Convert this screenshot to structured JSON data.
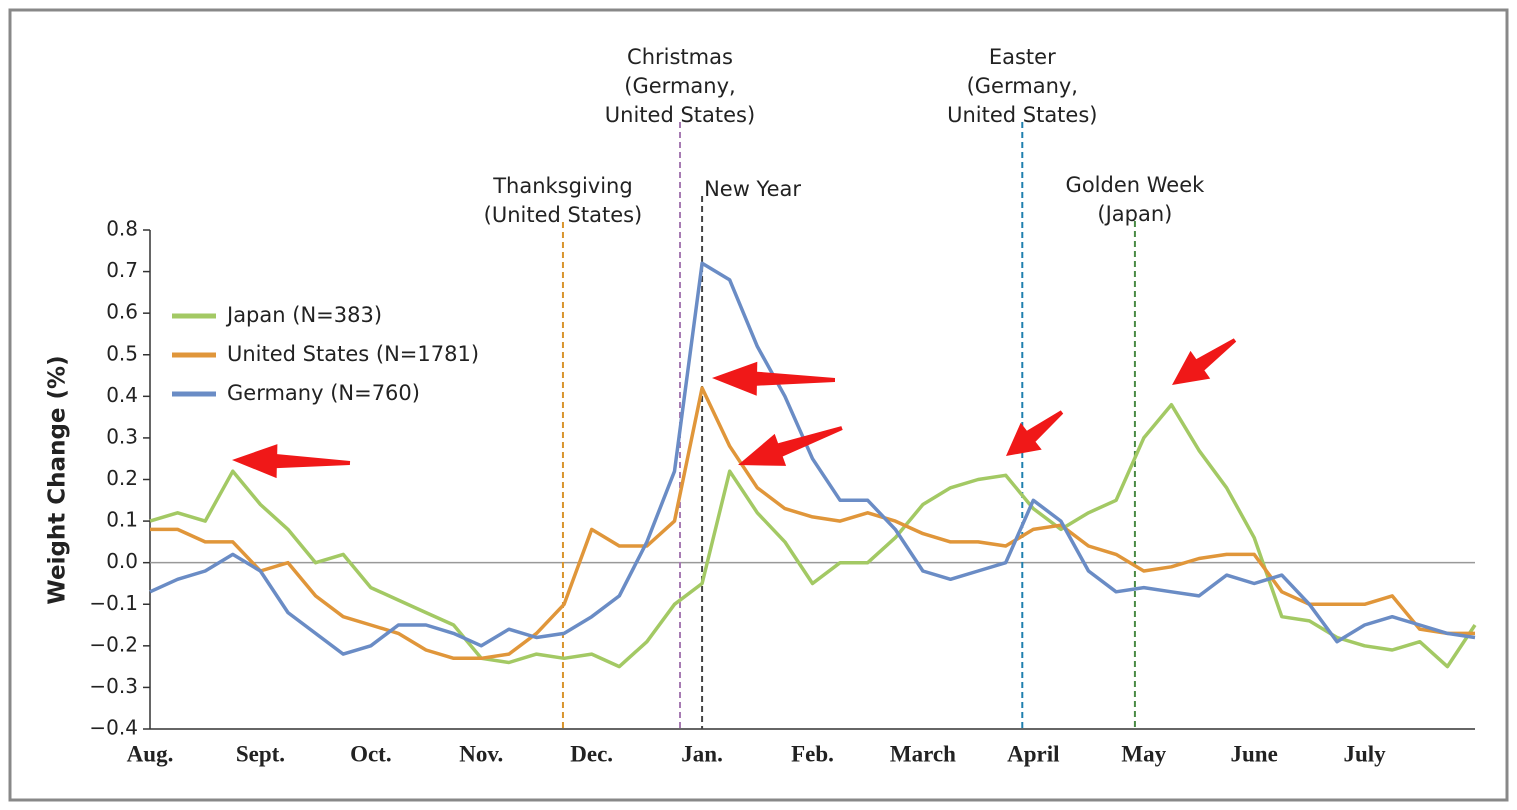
{
  "chart_data": {
    "type": "line",
    "y_label": "Weight Change (%)",
    "x": [
      0,
      0.25,
      0.5,
      0.75,
      1,
      1.25,
      1.5,
      1.75,
      2,
      2.25,
      2.5,
      2.75,
      3,
      3.25,
      3.5,
      3.75,
      4,
      4.25,
      4.5,
      4.75,
      5,
      5.25,
      5.5,
      5.75,
      6,
      6.25,
      6.5,
      6.75,
      7,
      7.25,
      7.5,
      7.75,
      8,
      8.25,
      8.5,
      8.75,
      9,
      9.25,
      9.5,
      9.75,
      10,
      10.25,
      10.5,
      10.75,
      11,
      11.25,
      11.5,
      11.75,
      12
    ],
    "series": [
      {
        "name": "Japan (N=383)",
        "color": "#a3c964",
        "values": [
          0.1,
          0.12,
          0.1,
          0.22,
          0.14,
          0.08,
          0.0,
          0.02,
          -0.06,
          -0.09,
          -0.12,
          -0.15,
          -0.23,
          -0.24,
          -0.22,
          -0.23,
          -0.22,
          -0.25,
          -0.19,
          -0.1,
          -0.05,
          0.22,
          0.12,
          0.05,
          -0.05,
          0.0,
          0.0,
          0.06,
          0.14,
          0.18,
          0.2,
          0.21,
          0.13,
          0.08,
          0.12,
          0.15,
          0.3,
          0.38,
          0.27,
          0.18,
          0.06,
          -0.13,
          -0.14,
          -0.18,
          -0.2,
          -0.21,
          -0.19,
          -0.25,
          -0.15
        ]
      },
      {
        "name": "United States (N=1781)",
        "color": "#e0963a",
        "values": [
          0.08,
          0.08,
          0.05,
          0.05,
          -0.02,
          0.0,
          -0.08,
          -0.13,
          -0.15,
          -0.17,
          -0.21,
          -0.23,
          -0.23,
          -0.22,
          -0.17,
          -0.1,
          0.08,
          0.04,
          0.04,
          0.1,
          0.42,
          0.28,
          0.18,
          0.13,
          0.11,
          0.1,
          0.12,
          0.1,
          0.07,
          0.05,
          0.05,
          0.04,
          0.08,
          0.09,
          0.04,
          0.02,
          -0.02,
          -0.01,
          0.01,
          0.02,
          0.02,
          -0.07,
          -0.1,
          -0.1,
          -0.1,
          -0.08,
          -0.16,
          -0.17,
          -0.17
        ]
      },
      {
        "name": "Germany (N=760)",
        "color": "#6a8cc5",
        "values": [
          -0.07,
          -0.04,
          -0.02,
          0.02,
          -0.02,
          -0.12,
          -0.17,
          -0.22,
          -0.2,
          -0.15,
          -0.15,
          -0.17,
          -0.2,
          -0.16,
          -0.18,
          -0.17,
          -0.13,
          -0.08,
          0.05,
          0.22,
          0.72,
          0.68,
          0.52,
          0.4,
          0.25,
          0.15,
          0.15,
          0.08,
          -0.02,
          -0.04,
          -0.02,
          0.0,
          0.15,
          0.1,
          -0.02,
          -0.07,
          -0.06,
          -0.07,
          -0.08,
          -0.03,
          -0.05,
          -0.03,
          -0.1,
          -0.19,
          -0.15,
          -0.13,
          -0.15,
          -0.17,
          -0.18
        ]
      }
    ],
    "xlim": [
      0,
      12
    ],
    "xticks": [
      {
        "value": 0,
        "label": "Aug."
      },
      {
        "value": 1,
        "label": "Sept."
      },
      {
        "value": 2,
        "label": "Oct."
      },
      {
        "value": 3,
        "label": "Nov."
      },
      {
        "value": 4,
        "label": "Dec."
      },
      {
        "value": 5,
        "label": "Jan."
      },
      {
        "value": 6,
        "label": "Feb."
      },
      {
        "value": 7,
        "label": "March"
      },
      {
        "value": 8,
        "label": "April"
      },
      {
        "value": 9,
        "label": "May"
      },
      {
        "value": 10,
        "label": "June"
      },
      {
        "value": 11,
        "label": "July"
      }
    ],
    "ylim": [
      -0.4,
      0.8
    ],
    "yticks": [
      {
        "value": -0.4,
        "label": "−0.4"
      },
      {
        "value": -0.3,
        "label": "−0.3"
      },
      {
        "value": -0.2,
        "label": "−0.2"
      },
      {
        "value": -0.1,
        "label": "−0.1"
      },
      {
        "value": 0,
        "label": "0.0"
      },
      0.1,
      0.2,
      0.3,
      0.4,
      0.5,
      0.6,
      0.7,
      0.8
    ],
    "legend": "upper left",
    "annotations": [
      {
        "text": [
          "Thanksgiving",
          "(United States)"
        ],
        "x": 3.74,
        "color": "#d8952e"
      },
      {
        "text": [
          "Christmas",
          "(Germany,",
          "United States)"
        ],
        "x": 4.8,
        "color": "#a77bb3"
      },
      {
        "text": [
          "New Year"
        ],
        "x": 5.0,
        "color": "#444444"
      },
      {
        "text": [
          "Easter",
          "(Germany,",
          "United States)"
        ],
        "x": 7.9,
        "color": "#1f7fae"
      },
      {
        "text": [
          "Golden Week",
          "(Japan)"
        ],
        "x": 8.92,
        "color": "#4a8a45"
      }
    ]
  }
}
